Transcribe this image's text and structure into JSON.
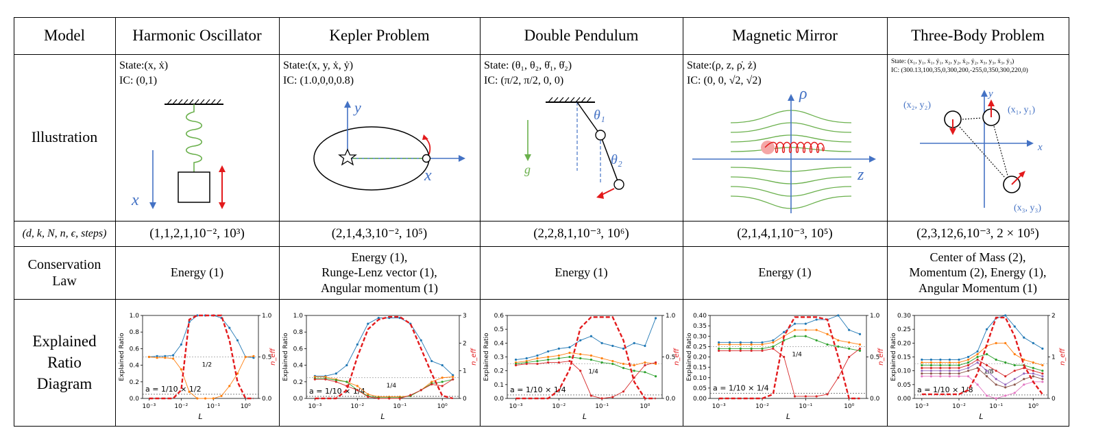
{
  "header": {
    "model": "Model",
    "columns": [
      "Harmonic Oscillator",
      "Kepler Problem",
      "Double Pendulum",
      "Magnetic Mirror",
      "Three-Body Problem"
    ]
  },
  "rows": {
    "illustration": "Illustration",
    "params": "(d, k, N, n, ϵ, steps)",
    "conservation_line1": "Conservation",
    "conservation_line2": "Law",
    "diagram_line1": "Explained",
    "diagram_line2": "Ratio",
    "diagram_line3": "Diagram"
  },
  "illustrations": [
    {
      "state": "State:(x, ẋ)",
      "ic": "IC:    (0,1)",
      "labels": [
        "x"
      ]
    },
    {
      "state": "State:(x, y, ẋ, ẏ)",
      "ic": "IC:    (1.0,0,0,0.8)",
      "labels": [
        "y",
        "x"
      ]
    },
    {
      "state": "State: (θ₁, θ₂, θ̇₁, θ̇₂)",
      "ic": "IC:    (π/2,  π/2,  0,   0)",
      "labels": [
        "θ₁",
        "θ₂",
        "g"
      ]
    },
    {
      "state": "State:(ρ, z, ρ̇, ż)",
      "ic": "IC:    (0, 0, √2, √2)",
      "labels": [
        "ρ",
        "z"
      ]
    },
    {
      "state": "State: (x₁, y₁, ẋ₁, ẏ₁, x₂, y₂, ẋ₂, ẏ₂, x₃, y₃, ẋ₃, ẏ₃)",
      "ic": "IC: (300.13,100,35,0,300,200,-255,0,350,300,220,0)",
      "labels": [
        "y",
        "x",
        "(x₂, y₂)",
        "(x₁, y₁)",
        "(x₃, y₃)"
      ]
    }
  ],
  "params": [
    "(1,1,2,1,10⁻², 10³)",
    "(2,1,4,3,10⁻², 10⁵)",
    "(2,2,8,1,10⁻³, 10⁶)",
    "(2,1,4,1,10⁻³, 10⁵)",
    "(2,3,12,6,10⁻³, 2 × 10⁵)"
  ],
  "conservation": [
    [
      "Energy (1)"
    ],
    [
      "Energy (1),",
      "Runge-Lenz vector (1),",
      "Angular momentum (1)"
    ],
    [
      "Energy (1)"
    ],
    [
      "Energy (1)"
    ],
    [
      "Center of Mass (2),",
      "Momentum (2), Energy (1),",
      "Angular Momentum (1)"
    ]
  ],
  "chart_data": [
    {
      "type": "line",
      "ylabel": "Explained Ratio",
      "y2label": "n_eff",
      "xlabel": "L",
      "xscale": "log",
      "xticks": [
        "10⁻³",
        "10⁻²",
        "10⁻¹",
        "10⁰"
      ],
      "yticks": [
        "0.0",
        "0.2",
        "0.4",
        "0.6",
        "0.8",
        "1.0"
      ],
      "y2ticks": [
        "0.0",
        "0.5",
        "1.0"
      ],
      "ylim": [
        0,
        1.0
      ],
      "y2lim": [
        0,
        1.0
      ],
      "annotation": "a = 1/10 × 1/2",
      "ref_label": "1/2",
      "x": [
        -3,
        -2.75,
        -2.5,
        -2.25,
        -2,
        -1.75,
        -1.5,
        -1.25,
        -1,
        -0.75,
        -0.5,
        -0.25,
        0,
        0.25
      ],
      "series": [
        {
          "color": "#1f77b4",
          "values": [
            0.5,
            0.51,
            0.51,
            0.52,
            0.65,
            0.92,
            1.0,
            1.0,
            1.0,
            0.97,
            0.85,
            0.7,
            0.5,
            0.49
          ]
        },
        {
          "color": "#ff7f0e",
          "values": [
            0.5,
            0.49,
            0.49,
            0.48,
            0.35,
            0.08,
            0.0,
            0.0,
            0.0,
            0.03,
            0.15,
            0.3,
            0.5,
            0.51
          ]
        }
      ],
      "neff": [
        0,
        0,
        0,
        0,
        0.1,
        0.95,
        1.0,
        1.0,
        1.0,
        1.0,
        0.7,
        0.2,
        0,
        0
      ]
    },
    {
      "type": "line",
      "ylabel": "Explained Ratio",
      "y2label": "n_eff",
      "xlabel": "L",
      "xscale": "log",
      "xticks": [
        "10⁻³",
        "10⁻²",
        "10⁻¹",
        "10⁰"
      ],
      "yticks": [
        "0.0",
        "0.2",
        "0.4",
        "0.6",
        "0.8",
        "1.0"
      ],
      "y2ticks": [
        "0",
        "1",
        "2",
        "3"
      ],
      "ylim": [
        0,
        1.0
      ],
      "y2lim": [
        0,
        3
      ],
      "annotation": "a = 1/10 × 1/4",
      "ref_label": "1/4",
      "x": [
        -3,
        -2.75,
        -2.5,
        -2.25,
        -2,
        -1.75,
        -1.5,
        -1.25,
        -1,
        -0.75,
        -0.5,
        -0.25,
        0,
        0.25
      ],
      "series": [
        {
          "color": "#1f77b4",
          "values": [
            0.27,
            0.27,
            0.3,
            0.4,
            0.65,
            0.9,
            0.97,
            0.97,
            0.97,
            0.9,
            0.7,
            0.45,
            0.4,
            0.28
          ]
        },
        {
          "color": "#ff7f0e",
          "values": [
            0.26,
            0.26,
            0.23,
            0.2,
            0.15,
            0.05,
            0.02,
            0.02,
            0.02,
            0.03,
            0.1,
            0.2,
            0.25,
            0.26
          ]
        },
        {
          "color": "#2ca02c",
          "values": [
            0.24,
            0.24,
            0.22,
            0.2,
            0.1,
            0.03,
            0.01,
            0.01,
            0.01,
            0.03,
            0.1,
            0.18,
            0.2,
            0.23
          ]
        },
        {
          "color": "#d62728",
          "values": [
            0.23,
            0.23,
            0.2,
            0.15,
            0.1,
            0.02,
            0.0,
            0.0,
            0.0,
            0.04,
            0.1,
            0.17,
            0.15,
            0.23
          ]
        }
      ],
      "neff": [
        0,
        0,
        0,
        0.3,
        1.5,
        2.5,
        2.85,
        2.95,
        2.95,
        2.7,
        1.8,
        0.9,
        0.1,
        0
      ]
    },
    {
      "type": "line",
      "ylabel": "Explained Ratio",
      "y2label": "n_eff",
      "xlabel": "L",
      "xscale": "log",
      "xticks": [
        "10⁻³",
        "10⁻²",
        "10⁻¹",
        "10⁰"
      ],
      "yticks": [
        "0.0",
        "0.1",
        "0.2",
        "0.3",
        "0.4",
        "0.5",
        "0.6"
      ],
      "y2ticks": [
        "0.0",
        "0.5",
        "1.0"
      ],
      "ylim": [
        0,
        0.6
      ],
      "y2lim": [
        0,
        1.0
      ],
      "annotation": "a = 1/10 × 1/4",
      "ref_label": "1/4",
      "x": [
        -3,
        -2.75,
        -2.5,
        -2.25,
        -2,
        -1.75,
        -1.5,
        -1.25,
        -1,
        -0.75,
        -0.5,
        -0.25,
        0,
        0.25
      ],
      "series": [
        {
          "color": "#1f77b4",
          "values": [
            0.28,
            0.29,
            0.31,
            0.34,
            0.36,
            0.37,
            0.42,
            0.45,
            0.4,
            0.38,
            0.36,
            0.4,
            0.38,
            0.58
          ]
        },
        {
          "color": "#ff7f0e",
          "values": [
            0.26,
            0.27,
            0.29,
            0.3,
            0.31,
            0.33,
            0.32,
            0.31,
            0.29,
            0.27,
            0.25,
            0.24,
            0.26,
            0.25
          ]
        },
        {
          "color": "#2ca02c",
          "values": [
            0.25,
            0.26,
            0.27,
            0.28,
            0.29,
            0.3,
            0.29,
            0.28,
            0.26,
            0.25,
            0.22,
            0.2,
            0.19,
            0.16
          ]
        },
        {
          "color": "#d62728",
          "values": [
            0.24,
            0.25,
            0.25,
            0.26,
            0.26,
            0.27,
            0.2,
            0.02,
            0.0,
            0.01,
            0.05,
            0.15,
            0.24,
            0.26
          ]
        }
      ],
      "neff": [
        0,
        0,
        0,
        0,
        0.1,
        0.35,
        0.85,
        0.98,
        0.98,
        0.98,
        0.7,
        0.2,
        0,
        0
      ]
    },
    {
      "type": "line",
      "ylabel": "Explained Ratio",
      "y2label": "n_eff",
      "xlabel": "L",
      "xscale": "log",
      "xticks": [
        "10⁻³",
        "10⁻²",
        "10⁻¹",
        "10⁰"
      ],
      "yticks": [
        "0.00",
        "0.05",
        "0.10",
        "0.15",
        "0.20",
        "0.25",
        "0.30",
        "0.35",
        "0.40"
      ],
      "y2ticks": [
        "0.0",
        "0.5",
        "1.0"
      ],
      "ylim": [
        0,
        0.4
      ],
      "y2lim": [
        0,
        1.0
      ],
      "annotation": "a = 1/10 × 1/4",
      "ref_label": "1/4",
      "x": [
        -3,
        -2.75,
        -2.5,
        -2.25,
        -2,
        -1.75,
        -1.5,
        -1.25,
        -1,
        -0.75,
        -0.5,
        -0.25,
        0,
        0.25
      ],
      "series": [
        {
          "color": "#1f77b4",
          "values": [
            0.27,
            0.27,
            0.27,
            0.27,
            0.27,
            0.28,
            0.32,
            0.36,
            0.36,
            0.38,
            0.38,
            0.4,
            0.33,
            0.31
          ]
        },
        {
          "color": "#ff7f0e",
          "values": [
            0.26,
            0.26,
            0.26,
            0.26,
            0.26,
            0.27,
            0.3,
            0.33,
            0.33,
            0.33,
            0.31,
            0.28,
            0.27,
            0.26
          ]
        },
        {
          "color": "#2ca02c",
          "values": [
            0.24,
            0.24,
            0.24,
            0.24,
            0.24,
            0.25,
            0.28,
            0.3,
            0.3,
            0.28,
            0.26,
            0.25,
            0.24,
            0.23
          ]
        },
        {
          "color": "#d62728",
          "values": [
            0.23,
            0.23,
            0.23,
            0.23,
            0.23,
            0.24,
            0.2,
            0.01,
            0.01,
            0.01,
            0.02,
            0.1,
            0.2,
            0.24
          ]
        }
      ],
      "neff": [
        0,
        0,
        0,
        0,
        0,
        0.05,
        0.75,
        0.98,
        0.98,
        0.98,
        0.95,
        0.5,
        0,
        0
      ]
    },
    {
      "type": "line",
      "ylabel": "Explained Ratio",
      "y2label": "n_eff",
      "xlabel": "L",
      "xscale": "log",
      "xticks": [
        "10⁻³",
        "10⁻²",
        "10⁻¹",
        "10⁰"
      ],
      "yticks": [
        "0.00",
        "0.05",
        "0.10",
        "0.15",
        "0.20",
        "0.25",
        "0.30"
      ],
      "y2ticks": [
        "0",
        "1",
        "2"
      ],
      "ylim": [
        0,
        0.3
      ],
      "y2lim": [
        0,
        2
      ],
      "annotation": "a = 1/10 × 1/8",
      "ref_label": "1/8",
      "x": [
        -3,
        -2.75,
        -2.5,
        -2.25,
        -2,
        -1.75,
        -1.5,
        -1.25,
        -1,
        -0.75,
        -0.5,
        -0.25,
        0,
        0.25
      ],
      "series": [
        {
          "color": "#1f77b4",
          "values": [
            0.14,
            0.14,
            0.14,
            0.14,
            0.14,
            0.15,
            0.17,
            0.25,
            0.29,
            0.3,
            0.26,
            0.22,
            0.2,
            0.18
          ]
        },
        {
          "color": "#ff7f0e",
          "values": [
            0.13,
            0.13,
            0.13,
            0.13,
            0.13,
            0.14,
            0.16,
            0.19,
            0.2,
            0.2,
            0.16,
            0.14,
            0.13,
            0.12
          ]
        },
        {
          "color": "#2ca02c",
          "values": [
            0.12,
            0.12,
            0.12,
            0.12,
            0.12,
            0.13,
            0.15,
            0.16,
            0.14,
            0.13,
            0.12,
            0.12,
            0.11,
            0.1
          ]
        },
        {
          "color": "#d62728",
          "values": [
            0.11,
            0.11,
            0.11,
            0.11,
            0.11,
            0.12,
            0.14,
            0.12,
            0.1,
            0.08,
            0.1,
            0.11,
            0.1,
            0.09
          ]
        },
        {
          "color": "#9467bd",
          "values": [
            0.1,
            0.1,
            0.1,
            0.1,
            0.1,
            0.11,
            0.13,
            0.1,
            0.07,
            0.05,
            0.07,
            0.09,
            0.09,
            0.08
          ]
        },
        {
          "color": "#8c564b",
          "values": [
            0.09,
            0.09,
            0.09,
            0.09,
            0.09,
            0.1,
            0.11,
            0.08,
            0.05,
            0.04,
            0.05,
            0.07,
            0.08,
            0.07
          ]
        },
        {
          "color": "#e377c2",
          "values": [
            0.08,
            0.08,
            0.08,
            0.08,
            0.08,
            0.08,
            0.05,
            0.01,
            0.0,
            0.01,
            0.02,
            0.05,
            0.06,
            0.06
          ]
        }
      ],
      "neff": [
        0.1,
        0.1,
        0.1,
        0.1,
        0.1,
        0.2,
        0.6,
        1.3,
        1.95,
        1.95,
        1.5,
        0.8,
        0.4,
        0.1
      ]
    }
  ]
}
